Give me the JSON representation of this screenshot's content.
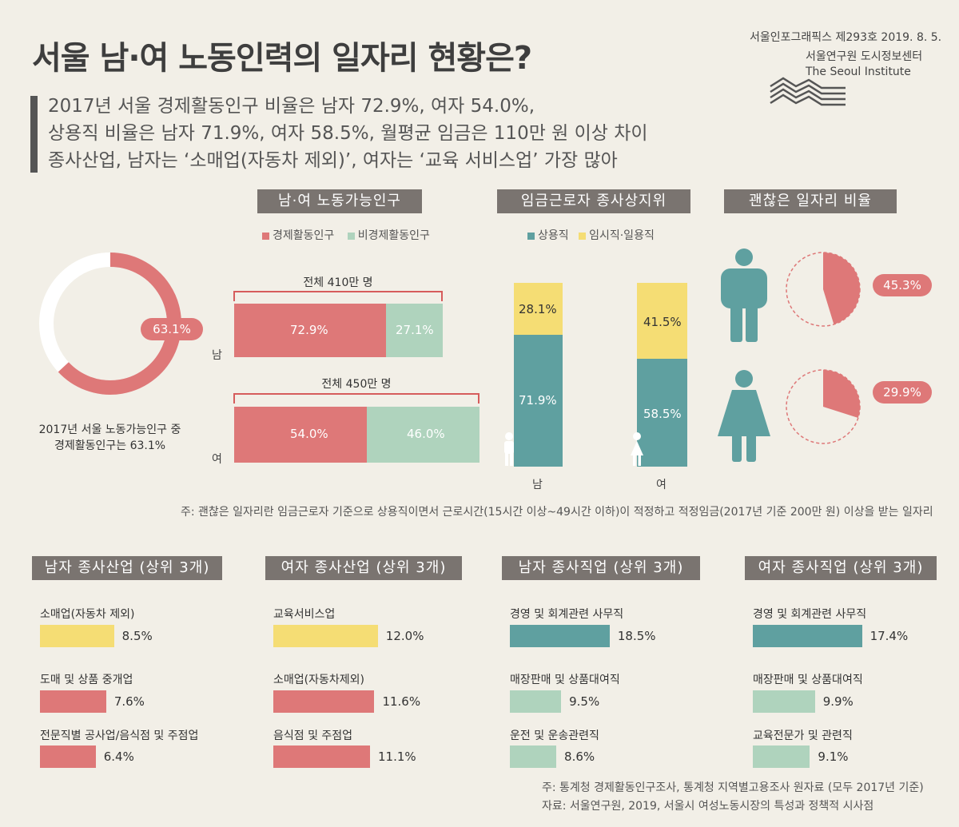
{
  "header": {
    "title": "서울 남·여 노동인력의 일자리 현황은?",
    "issue": "서울인포그래픽스 제293호 2019. 8. 5.",
    "org_ko": "서울연구원 도시정보센터",
    "org_en": "The Seoul Institute",
    "summary": [
      "2017년 서울 경제활동인구 비율은 남자 72.9%, 여자 54.0%,",
      "상용직 비율은 남자 71.9%, 여자 58.5%, 월평균 임금은 110만 원 이상 차이",
      "종사산업, 남자는 ‘소매업(자동차 제외)’, 여자는 ‘교육 서비스업’ 가장 많아"
    ]
  },
  "colors": {
    "red": "#de7878",
    "mint": "#afd3bd",
    "teal": "#5fa0a0",
    "yellow": "#f5dd74",
    "gray": "#7a7470"
  },
  "donut": {
    "value_label": "63.1%",
    "caption_1": "2017년 서울 노동가능인구 중",
    "caption_2": "경제활동인구는 63.1%"
  },
  "chart_data": [
    {
      "type": "pie",
      "title": "",
      "labels": [
        "경제활동인구",
        "비경제활동인구"
      ],
      "values": [
        63.1,
        36.9
      ]
    },
    {
      "type": "bar",
      "title": "남·여 노동가능인구",
      "orientation": "horizontal",
      "stacked": true,
      "legend": [
        "경제활동인구",
        "비경제활동인구"
      ],
      "groups": [
        {
          "label": "남",
          "total_label": "전체 410만 명",
          "values": [
            72.9,
            27.1
          ],
          "labels": [
            "72.9%",
            "27.1%"
          ]
        },
        {
          "label": "여",
          "total_label": "전체 450만 명",
          "values": [
            54.0,
            46.0
          ],
          "labels": [
            "54.0%",
            "46.0%"
          ]
        }
      ]
    },
    {
      "type": "bar",
      "title": "임금근로자 종사상지위",
      "stacked": true,
      "legend": [
        "상용직",
        "임시직·일용직"
      ],
      "categories": [
        "남",
        "여"
      ],
      "series": [
        {
          "name": "상용직",
          "values": [
            71.9,
            58.5
          ],
          "labels": [
            "71.9%",
            "58.5%"
          ]
        },
        {
          "name": "임시직·일용직",
          "values": [
            28.1,
            41.5
          ],
          "labels": [
            "28.1%",
            "41.5%"
          ]
        }
      ]
    },
    {
      "type": "pie",
      "title": "괜찮은 일자리 비율",
      "items": [
        {
          "label": "남",
          "value": 45.3,
          "text": "45.3%"
        },
        {
          "label": "여",
          "value": 29.9,
          "text": "29.9%"
        }
      ]
    },
    {
      "type": "bar",
      "orientation": "horizontal",
      "title": "남자 종사산업 (상위 3개)",
      "items": [
        {
          "label": "소매업(자동차 제외)",
          "value": 8.5,
          "text": "8.5%",
          "color": "#f5dd74"
        },
        {
          "label": "도매 및 상품 중개업",
          "value": 7.6,
          "text": "7.6%",
          "color": "#de7878"
        },
        {
          "label": "전문직별 공사업/음식점 및 주점업",
          "value": 6.4,
          "text": "6.4%",
          "color": "#de7878"
        }
      ]
    },
    {
      "type": "bar",
      "orientation": "horizontal",
      "title": "여자 종사산업 (상위 3개)",
      "items": [
        {
          "label": "교육서비스업",
          "value": 12.0,
          "text": "12.0%",
          "color": "#f5dd74"
        },
        {
          "label": "소매업(자동차제외)",
          "value": 11.6,
          "text": "11.6%",
          "color": "#de7878"
        },
        {
          "label": "음식점 및 주점업",
          "value": 11.1,
          "text": "11.1%",
          "color": "#de7878"
        }
      ]
    },
    {
      "type": "bar",
      "orientation": "horizontal",
      "title": "남자 종사직업 (상위 3개)",
      "items": [
        {
          "label": "경영 및 회계관련 사무직",
          "value": 18.5,
          "text": "18.5%",
          "color": "#5fa0a0"
        },
        {
          "label": "매장판매 및 상품대여직",
          "value": 9.5,
          "text": "9.5%",
          "color": "#afd3bd"
        },
        {
          "label": "운전 및 운송관련직",
          "value": 8.6,
          "text": "8.6%",
          "color": "#afd3bd"
        }
      ]
    },
    {
      "type": "bar",
      "orientation": "horizontal",
      "title": "여자 종사직업 (상위 3개)",
      "items": [
        {
          "label": "경영 및 회계관련 사무직",
          "value": 17.4,
          "text": "17.4%",
          "color": "#5fa0a0"
        },
        {
          "label": "매장판매 및 상품대여직",
          "value": 9.9,
          "text": "9.9%",
          "color": "#afd3bd"
        },
        {
          "label": "교육전문가 및 관련직",
          "value": 9.1,
          "text": "9.1%",
          "color": "#afd3bd"
        }
      ]
    }
  ],
  "section2": {
    "title": "남·여 노동가능인구",
    "legend_a": "경제활동인구",
    "legend_b": "비경제활동인구",
    "male_total": "전체 410만 명",
    "female_total": "전체 450만 명",
    "male_label": "남",
    "female_label": "여",
    "male_a": "72.9%",
    "male_b": "27.1%",
    "female_a": "54.0%",
    "female_b": "46.0%"
  },
  "section3": {
    "title": "임금근로자 종사상지위",
    "legend_a": "상용직",
    "legend_b": "임시직·일용직",
    "male_label": "남",
    "female_label": "여",
    "male_regular": "71.9%",
    "male_temp": "28.1%",
    "female_regular": "58.5%",
    "female_temp": "41.5%"
  },
  "section4": {
    "title": "괜찮은 일자리 비율",
    "male_value": "45.3%",
    "female_value": "29.9%"
  },
  "notes": {
    "decent_job": "주: 괜찮은 일자리란 임금근로자 기준으로 상용직이면서 근로시간(15시간 이상~49시간 이하)이 적정하고 적정임금(2017년 기준 200만 원) 이상을 받는 일자리",
    "source": "주: 통계청 경제활동인구조사, 통계청 지역별고용조사 원자료 (모두 2017년 기준)",
    "reference": "자료: 서울연구원, 2019, 서울시 여성노동시장의 특성과 정책적 시사점"
  }
}
